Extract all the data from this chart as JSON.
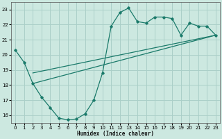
{
  "xlabel": "Humidex (Indice chaleur)",
  "bg_color": "#cce8e0",
  "grid_color": "#aacfc8",
  "line_color": "#1a7a6a",
  "xlim": [
    -0.5,
    23.5
  ],
  "ylim": [
    15.5,
    23.5
  ],
  "xticks": [
    0,
    1,
    2,
    3,
    4,
    5,
    6,
    7,
    8,
    9,
    10,
    11,
    12,
    13,
    14,
    15,
    16,
    17,
    18,
    19,
    20,
    21,
    22,
    23
  ],
  "yticks": [
    16,
    17,
    18,
    19,
    20,
    21,
    22,
    23
  ],
  "curve1_x": [
    0,
    1,
    2,
    3,
    4,
    5,
    6,
    7,
    8,
    9,
    10,
    11,
    12,
    13,
    14,
    15,
    16,
    17,
    18,
    19,
    20,
    21,
    22,
    23
  ],
  "curve1_y": [
    20.3,
    19.5,
    18.1,
    17.2,
    16.5,
    15.8,
    15.7,
    15.75,
    16.1,
    17.0,
    18.8,
    21.9,
    22.8,
    23.1,
    22.2,
    22.1,
    22.5,
    22.5,
    22.4,
    21.3,
    22.1,
    21.9,
    21.9,
    21.3
  ],
  "curve2_x": [
    2,
    23
  ],
  "curve2_y": [
    18.1,
    21.3
  ],
  "curve3_x": [
    2,
    23
  ],
  "curve3_y": [
    18.8,
    21.3
  ]
}
